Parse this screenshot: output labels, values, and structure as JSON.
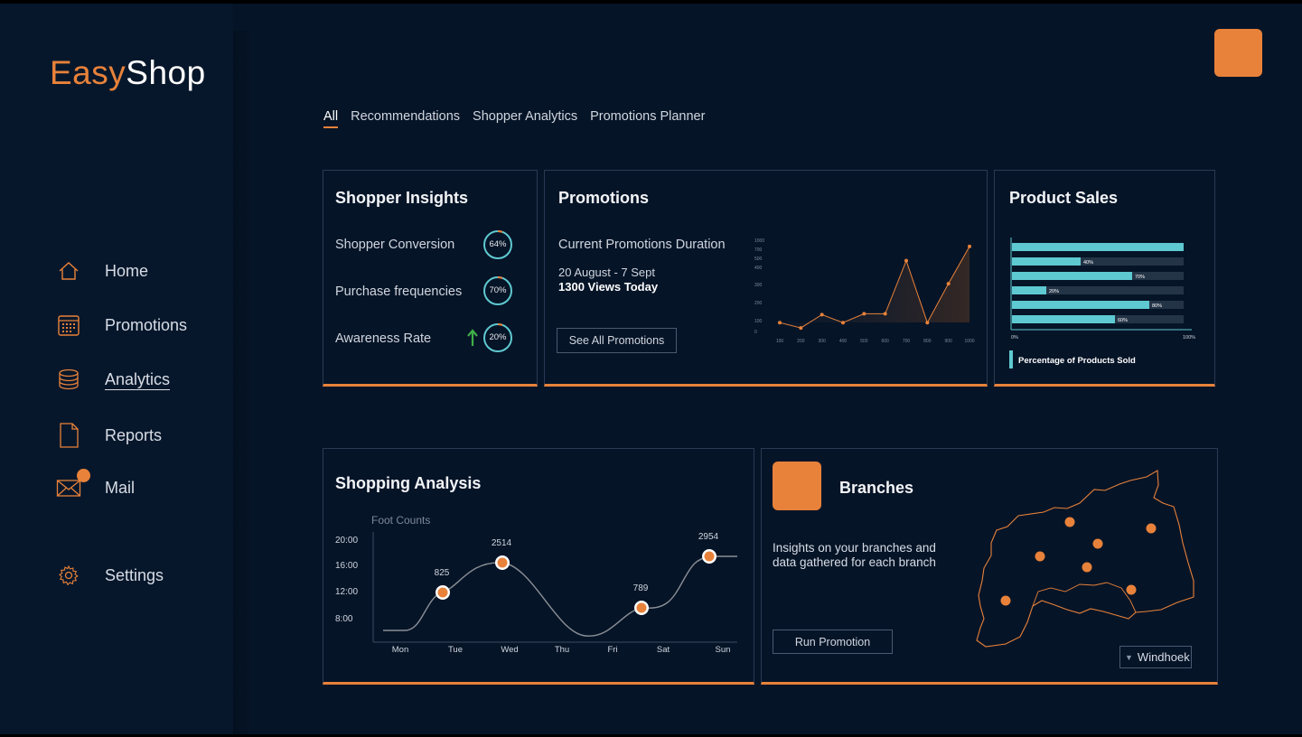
{
  "app": {
    "logo_easy": "Easy",
    "logo_shop": "Shop"
  },
  "sidebar": {
    "items": [
      {
        "label": "Home",
        "icon": "home-icon"
      },
      {
        "label": "Promotions",
        "icon": "calendar-icon"
      },
      {
        "label": "Analytics",
        "icon": "database-icon"
      },
      {
        "label": "Reports",
        "icon": "document-icon"
      },
      {
        "label": "Mail",
        "icon": "mail-icon"
      },
      {
        "label": "Settings",
        "icon": "gear-icon"
      }
    ],
    "active": "Analytics"
  },
  "tabs": [
    "All",
    "Recommendations",
    "Shopper Analytics",
    "Promotions Planner"
  ],
  "shopper_insights": {
    "title": "Shopper Insights",
    "rows": [
      {
        "label": "Shopper Conversion",
        "value": "64%",
        "pct": 64
      },
      {
        "label": "Purchase frequencies",
        "value": "70%",
        "pct": 70
      },
      {
        "label": "Awareness Rate",
        "value": "20%",
        "pct": 20
      }
    ]
  },
  "promotions": {
    "title": "Promotions",
    "subtitle": "Current Promotions Duration",
    "dates": "20 August - 7 Sept",
    "views": "1300 Views Today",
    "button": "See All Promotions"
  },
  "product_sales": {
    "title": "Product Sales",
    "legend": "Percentage of Products Sold"
  },
  "shopping_analysis": {
    "title": "Shopping Analysis",
    "subtitle": "Foot Counts"
  },
  "branches": {
    "title": "Branches",
    "description": "Insights on your branches and data gathered for each branch",
    "button": "Run Promotion",
    "location": "Windhoek"
  },
  "colors": {
    "accent": "#e8823a",
    "teal": "#5ec9d0",
    "background": "#061427"
  },
  "chart_data": [
    {
      "type": "area",
      "title": "Promotions",
      "x": [
        100,
        200,
        300,
        400,
        500,
        600,
        700,
        800,
        900,
        1000
      ],
      "y": [
        100,
        40,
        190,
        100,
        200,
        200,
        800,
        100,
        540,
        960
      ],
      "y_ticks": [
        "0",
        "100",
        "200",
        "300",
        "400",
        "500",
        "700",
        "1000"
      ],
      "x_ticks": [
        "100",
        "200",
        "300",
        "400",
        "500",
        "600",
        "700",
        "800",
        "900",
        "1000"
      ],
      "ylim": [
        0,
        1000
      ]
    },
    {
      "type": "bar",
      "orientation": "horizontal",
      "title": "Product Sales",
      "values": [
        100,
        40,
        70,
        20,
        80,
        60
      ],
      "labels": [
        "",
        "40%",
        "70%",
        "20%",
        "80%",
        "60%"
      ],
      "x_tick_min": "0%",
      "x_tick_max": "100%",
      "xlim": [
        0,
        100
      ],
      "legend": "Percentage of Products Sold"
    },
    {
      "type": "line",
      "title": "Shopping Analysis",
      "ylabel": "Foot Counts",
      "categories": [
        "Mon",
        "Tue",
        "Wed",
        "Thu",
        "Fri",
        "Sat",
        "Sun"
      ],
      "y_ticks": [
        "20:00",
        "16:00",
        "12:00",
        "8:00"
      ],
      "highlighted_points": [
        {
          "day": "Tue",
          "value": "825"
        },
        {
          "day": "Wed",
          "value": "2514"
        },
        {
          "day": "Sat",
          "value": "789"
        },
        {
          "day": "Sun",
          "value": "2954"
        }
      ]
    }
  ]
}
